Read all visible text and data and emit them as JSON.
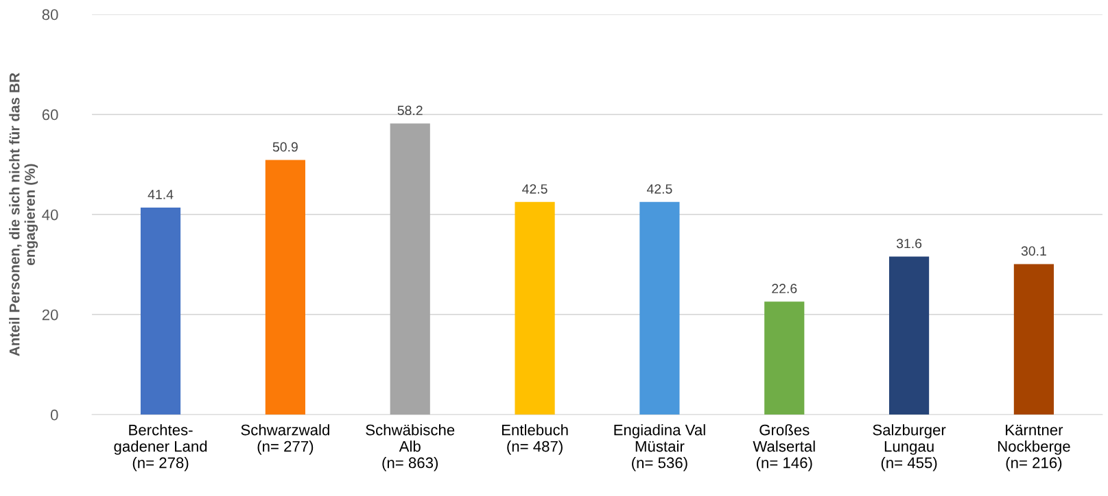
{
  "chart_data": {
    "type": "bar",
    "ylabel": "Anteil Personen, die sich nicht für das BR\nengagieren (%)",
    "categories": [
      "Berchtes-\ngadener Land\n(n= 278)",
      "Schwarzwald\n(n= 277)",
      "Schwäbische\nAlb\n(n= 863)",
      "Entlebuch\n(n= 487)",
      "Engiadina Val\nMüstair\n(n= 536)",
      "Großes\nWalsertal\n(n= 146)",
      "Salzburger\nLungau\n(n= 455)",
      "Kärntner\nNockberge\n(n= 216)"
    ],
    "values": [
      41.4,
      50.9,
      58.2,
      42.5,
      42.5,
      22.6,
      31.6,
      30.1
    ],
    "colors": [
      "#4472c4",
      "#fb7a08",
      "#a5a5a5",
      "#ffc000",
      "#4a98dc",
      "#70ad47",
      "#264478",
      "#a64400"
    ],
    "ylim": [
      0,
      80
    ],
    "yticks": [
      0,
      20,
      40,
      60,
      80
    ],
    "grid": "y",
    "data_labels": true
  }
}
